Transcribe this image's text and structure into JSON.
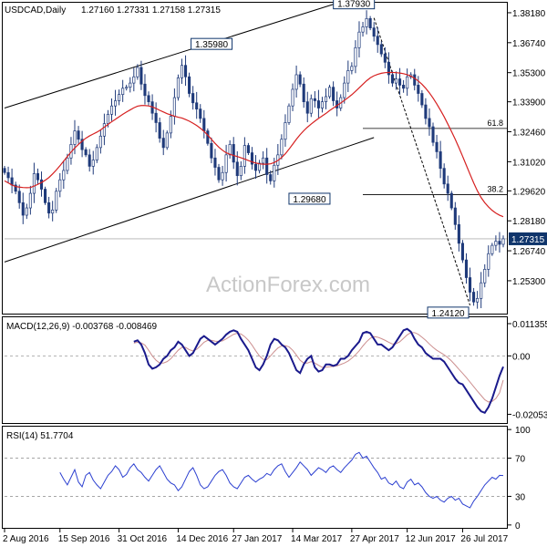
{
  "header": {
    "symbol": "USDCAD,Daily",
    "ohlc": "1.27160 1.27331 1.27158 1.27315"
  },
  "watermark": "ActionForex.com",
  "colors": {
    "candle": "#1f3a7a",
    "ma": "#d62020",
    "macd": "#1a1a8c",
    "signal": "#cc8f8f",
    "rsi": "#2b3fd0",
    "channel": "#000000",
    "grid": "#9a9a9a",
    "price_tag_bg": "#10356b"
  },
  "chart_data": [
    {
      "type": "candlestick",
      "pane": "price",
      "title": "USDCAD,Daily",
      "ylim": [
        1.2372,
        1.3866
      ],
      "ytick_labels": [
        "1.38180",
        "1.36740",
        "1.35300",
        "1.33900",
        "1.32460",
        "1.31020",
        "1.29620",
        "1.28180",
        "1.26740",
        "1.25300"
      ],
      "ytick_values": [
        1.3818,
        1.3674,
        1.353,
        1.339,
        1.3246,
        1.3102,
        1.2962,
        1.2818,
        1.2674,
        1.253
      ],
      "last_price_label": "1.27315",
      "last_price": 1.27315,
      "xtick_labels": [
        "2 Aug 2016",
        "15 Sep 2016",
        "31 Oct 2016",
        "14 Dec 2016",
        "27 Jan 2017",
        "14 Mar 2017",
        "27 Apr 2017",
        "12 Jun 2017",
        "26 Jul 2017"
      ],
      "annotations": [
        {
          "text": "1.35980",
          "value": 1.3598
        },
        {
          "text": "1.29680",
          "value": 1.2968
        },
        {
          "text": "1.37930",
          "value": 1.3793
        },
        {
          "text": "1.24120",
          "value": 1.2412
        }
      ],
      "fib_levels": [
        {
          "label": "61.8",
          "value": 1.3262
        },
        {
          "label": "38.2",
          "value": 1.2944
        }
      ],
      "closes": [
        1.305,
        1.3025,
        1.299,
        1.296,
        1.2905,
        1.2845,
        1.288,
        1.295,
        1.3045,
        1.3015,
        1.297,
        1.2905,
        1.2855,
        1.287,
        1.296,
        1.3015,
        1.306,
        1.312,
        1.3185,
        1.325,
        1.321,
        1.316,
        1.3135,
        1.308,
        1.311,
        1.317,
        1.3225,
        1.3285,
        1.333,
        1.337,
        1.3395,
        1.3425,
        1.3455,
        1.346,
        1.348,
        1.351,
        1.3555,
        1.3475,
        1.342,
        1.339,
        1.3335,
        1.329,
        1.3215,
        1.317,
        1.324,
        1.332,
        1.341,
        1.3505,
        1.3565,
        1.351,
        1.343,
        1.3385,
        1.3355,
        1.331,
        1.325,
        1.319,
        1.312,
        1.3075,
        1.3015,
        1.305,
        1.3135,
        1.3185,
        1.31,
        1.3035,
        1.308,
        1.318,
        1.3145,
        1.309,
        1.306,
        1.3095,
        1.312,
        1.304,
        1.301,
        1.3085,
        1.3135,
        1.321,
        1.329,
        1.337,
        1.345,
        1.352,
        1.3475,
        1.339,
        1.3335,
        1.3405,
        1.3395,
        1.336,
        1.339,
        1.3415,
        1.346,
        1.3395,
        1.336,
        1.341,
        1.348,
        1.354,
        1.356,
        1.365,
        1.3725,
        1.375,
        1.379,
        1.3745,
        1.3705,
        1.3665,
        1.362,
        1.358,
        1.352,
        1.348,
        1.35,
        1.347,
        1.3455,
        1.351,
        1.352,
        1.347,
        1.343,
        1.3375,
        1.331,
        1.327,
        1.3195,
        1.315,
        1.307,
        1.2995,
        1.295,
        1.288,
        1.28,
        1.271,
        1.263,
        1.2545,
        1.2475,
        1.2428,
        1.2445,
        1.252,
        1.2585,
        1.266,
        1.27,
        1.272,
        1.2705,
        1.27315
      ],
      "moving_average": [
        1.301,
        1.3,
        1.299,
        1.2983,
        1.298,
        1.2978,
        1.2977,
        1.2978,
        1.2985,
        1.2993,
        1.3002,
        1.3013,
        1.3026,
        1.3043,
        1.3062,
        1.3083,
        1.3105,
        1.3127,
        1.3148,
        1.3168,
        1.3185,
        1.3201,
        1.3215,
        1.3226,
        1.3235,
        1.3244,
        1.3255,
        1.3268,
        1.3281,
        1.3294,
        1.3306,
        1.3318,
        1.333,
        1.3341,
        1.3351,
        1.3361,
        1.3369,
        1.3372,
        1.3372,
        1.337,
        1.3365,
        1.3358,
        1.3349,
        1.3341,
        1.3333,
        1.3327,
        1.3321,
        1.3316,
        1.3312,
        1.3305,
        1.3297,
        1.3287,
        1.3276,
        1.3263,
        1.3248,
        1.323,
        1.321,
        1.319,
        1.3172,
        1.3157,
        1.3145,
        1.3138,
        1.3132,
        1.3127,
        1.3121,
        1.3115,
        1.3108,
        1.3101,
        1.3096,
        1.3092,
        1.309,
        1.309,
        1.3092,
        1.3098,
        1.3108,
        1.3122,
        1.314,
        1.3162,
        1.3186,
        1.321,
        1.3232,
        1.3251,
        1.3268,
        1.3283,
        1.3297,
        1.331,
        1.3322,
        1.3334,
        1.3348,
        1.336,
        1.3372,
        1.3384,
        1.3397,
        1.341,
        1.3424,
        1.344,
        1.3457,
        1.3474,
        1.3491,
        1.3505,
        1.3515,
        1.3522,
        1.3527,
        1.353,
        1.3531,
        1.3531,
        1.353,
        1.3528,
        1.3525,
        1.352,
        1.3513,
        1.3503,
        1.349,
        1.3474,
        1.3455,
        1.3433,
        1.3408,
        1.338,
        1.335,
        1.3318,
        1.3283,
        1.3247,
        1.321,
        1.317,
        1.3128,
        1.3085,
        1.3042,
        1.3,
        1.2962,
        1.293,
        1.2905,
        1.2885,
        1.2868,
        1.2855,
        1.2845,
        1.2838
      ],
      "channel_lines": [
        {
          "from": {
            "bar": 0,
            "price": 1.336
          },
          "to": {
            "bar": 100,
            "price": 1.392
          }
        },
        {
          "from": {
            "bar": 0,
            "price": 1.262
          },
          "to": {
            "bar": 100,
            "price": 1.3218
          }
        }
      ],
      "trend_line": {
        "from": {
          "bar": 100,
          "price": 1.3793
        },
        "to": {
          "bar": 126,
          "price": 1.2412
        }
      }
    },
    {
      "type": "line",
      "pane": "macd",
      "title": "MACD(12,26,9) -0.003768 -0.008469",
      "ylim": [
        -0.0236,
        0.0136
      ],
      "ytick_labels": [
        "0.011355",
        "0.00",
        "-0.020531"
      ],
      "ytick_values": [
        0.011355,
        0.0,
        -0.020531
      ],
      "series": [
        {
          "name": "MACD",
          "values": [
            0.005,
            0.0055,
            0.004,
            0.001,
            -0.003,
            -0.0045,
            -0.004,
            -0.003,
            -0.001,
            0.0,
            0.002,
            0.003,
            0.005,
            0.004,
            0.002,
            0.0,
            0.001,
            0.0035,
            0.006,
            0.007,
            0.006,
            0.005,
            0.004,
            0.005,
            0.006,
            0.0075,
            0.0085,
            0.009,
            0.0085,
            0.006,
            0.004,
            0.002,
            -0.001,
            -0.004,
            -0.005,
            -0.003,
            0.0,
            0.004,
            0.006,
            0.0055,
            0.004,
            0.003,
            0.001,
            -0.002,
            -0.005,
            -0.006,
            -0.003,
            -0.001,
            0.0,
            -0.004,
            -0.0055,
            -0.005,
            -0.003,
            -0.003,
            -0.0035,
            -0.003,
            -0.001,
            -0.001,
            0.0,
            0.002,
            0.0035,
            0.005,
            0.008,
            0.0085,
            0.008,
            0.006,
            0.004,
            0.004,
            0.003,
            0.002,
            0.003,
            0.005,
            0.007,
            0.009,
            0.0095,
            0.0085,
            0.006,
            0.004,
            0.003,
            0.001,
            0.0,
            -0.001,
            -0.001,
            -0.001,
            -0.002,
            -0.004,
            -0.006,
            -0.008,
            -0.0095,
            -0.01,
            -0.012,
            -0.014,
            -0.016,
            -0.018,
            -0.0195,
            -0.02,
            -0.018,
            -0.015,
            -0.011,
            -0.007,
            -0.0038
          ]
        },
        {
          "name": "Signal",
          "values": [
            0.0045,
            0.0048,
            0.0046,
            0.0038,
            0.002,
            0.0,
            -0.0015,
            -0.0025,
            -0.0025,
            -0.002,
            -0.001,
            0.0005,
            0.002,
            0.003,
            0.003,
            0.0022,
            0.0018,
            0.0023,
            0.0035,
            0.0048,
            0.0055,
            0.0055,
            0.0052,
            0.0051,
            0.0053,
            0.006,
            0.0068,
            0.0076,
            0.008,
            0.0077,
            0.0068,
            0.0055,
            0.0038,
            0.0018,
            0.0,
            -0.0012,
            -0.0013,
            0.0,
            0.0015,
            0.0028,
            0.0035,
            0.0036,
            0.0032,
            0.002,
            0.0003,
            -0.0015,
            -0.0025,
            -0.0025,
            -0.002,
            -0.0025,
            -0.0033,
            -0.004,
            -0.004,
            -0.0038,
            -0.0037,
            -0.0035,
            -0.003,
            -0.0025,
            -0.0018,
            -0.0008,
            0.0004,
            0.0018,
            0.0035,
            0.005,
            0.0062,
            0.0068,
            0.0066,
            0.0061,
            0.0055,
            0.0048,
            0.0042,
            0.0043,
            0.005,
            0.0062,
            0.0074,
            0.0082,
            0.0082,
            0.0076,
            0.0066,
            0.0055,
            0.0042,
            0.003,
            0.002,
            0.0012,
            0.0004,
            -0.0006,
            -0.0018,
            -0.0032,
            -0.0047,
            -0.0061,
            -0.0076,
            -0.0092,
            -0.0108,
            -0.0124,
            -0.0139,
            -0.0154,
            -0.0162,
            -0.016,
            -0.015,
            -0.013,
            -0.0085
          ]
        }
      ]
    },
    {
      "type": "line",
      "pane": "rsi",
      "title": "RSI(14) 51.7704",
      "ylim": [
        -3,
        103
      ],
      "ytick_labels": [
        "100",
        "70",
        "30",
        "0"
      ],
      "ytick_values": [
        100,
        70,
        30,
        0
      ],
      "series": [
        {
          "name": "RSI(14)",
          "values": [
            55,
            48,
            42,
            50,
            58,
            45,
            40,
            52,
            55,
            47,
            42,
            38,
            45,
            52,
            56,
            62,
            58,
            50,
            53,
            60,
            64,
            58,
            55,
            50,
            46,
            52,
            58,
            62,
            55,
            48,
            44,
            42,
            36,
            40,
            48,
            56,
            60,
            52,
            42,
            38,
            40,
            46,
            52,
            56,
            58,
            52,
            44,
            40,
            38,
            44,
            50,
            52,
            48,
            45,
            48,
            50,
            54,
            52,
            58,
            62,
            64,
            56,
            50,
            55,
            60,
            66,
            62,
            58,
            52,
            56,
            60,
            58,
            55,
            60,
            62,
            58,
            55,
            60,
            64,
            68,
            74,
            76,
            70,
            72,
            66,
            60,
            55,
            48,
            50,
            44,
            42,
            46,
            40,
            38,
            45,
            48,
            42,
            44,
            40,
            34,
            30,
            28,
            30,
            26,
            24,
            28,
            30,
            26,
            28,
            22,
            20,
            18,
            25,
            30,
            36,
            42,
            46,
            50,
            48,
            52,
            51.77
          ]
        }
      ]
    }
  ]
}
